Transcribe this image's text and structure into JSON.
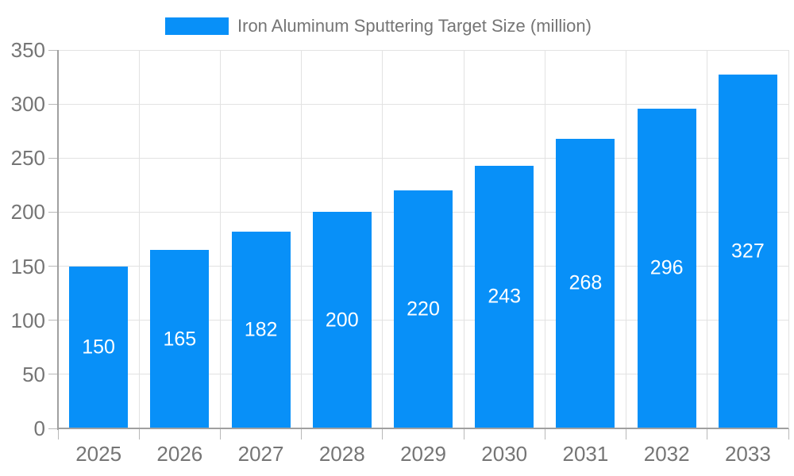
{
  "legend": {
    "label": "Iron Aluminum Sputtering Target Size (million)"
  },
  "chart_data": {
    "type": "bar",
    "title": "Iron Aluminum Sputtering Target Size (million)",
    "categories": [
      "2025",
      "2026",
      "2027",
      "2028",
      "2029",
      "2030",
      "2031",
      "2032",
      "2033"
    ],
    "values": [
      150,
      165,
      182,
      200,
      220,
      243,
      268,
      296,
      327
    ],
    "xlabel": "",
    "ylabel": "",
    "ylim": [
      0,
      350
    ],
    "yticks": [
      0,
      50,
      100,
      150,
      200,
      250,
      300,
      350
    ],
    "grid": true,
    "legend_position": "top",
    "value_labels": "inside-center",
    "colors": {
      "bar": "#0890f8",
      "value_label": "#ffffff",
      "axis_label": "#757575",
      "gridline": "#e2e2e2",
      "axis_line": "#a0a0a0"
    }
  }
}
